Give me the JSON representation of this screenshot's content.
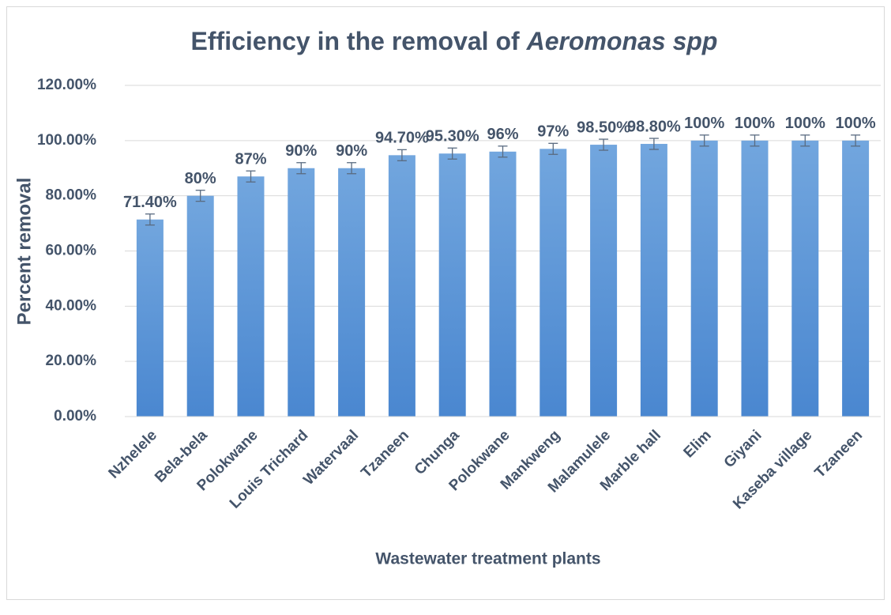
{
  "chart_data": {
    "type": "bar",
    "title": [
      "Efficiency in the removal of",
      "Aeromonas spp"
    ],
    "xlabel": "Wastewater treatment plants",
    "ylabel": "Percent removal",
    "categories": [
      "Nzhelele",
      "Bela-bela",
      "Polokwane",
      "Louis Trichard",
      "Watervaal",
      "Tzaneen",
      "Chunga",
      "Polokwane",
      "Mankweng",
      "Malamulele",
      "Marble hall",
      "Elim",
      "Giyani",
      "Kaseba village",
      "Tzaneen"
    ],
    "values": [
      71.4,
      80,
      87,
      90,
      90,
      94.7,
      95.3,
      96,
      97,
      98.5,
      98.8,
      100,
      100,
      100,
      100
    ],
    "value_labels": [
      "71.40%",
      "80%",
      "87%",
      "90%",
      "90%",
      "94.70%",
      "95.30%",
      "96%",
      "97%",
      "98.50%",
      "98.80%",
      "100%",
      "100%",
      "100%",
      "100%"
    ],
    "errors": [
      2,
      2,
      2,
      2,
      2,
      2,
      2,
      2,
      2,
      2,
      2,
      2,
      2,
      2,
      2
    ],
    "color": "#5b9bd5",
    "ylim": [
      0,
      120
    ],
    "yticks": [
      {
        "value": 0,
        "label": "0.00%"
      },
      {
        "value": 20,
        "label": "20.00%"
      },
      {
        "value": 40,
        "label": "40.00%"
      },
      {
        "value": 60,
        "label": "60.00%"
      },
      {
        "value": 80,
        "label": "80.00%"
      },
      {
        "value": 100,
        "label": "100.00%"
      },
      {
        "value": 120,
        "label": "120.00%"
      }
    ],
    "grid": true
  }
}
